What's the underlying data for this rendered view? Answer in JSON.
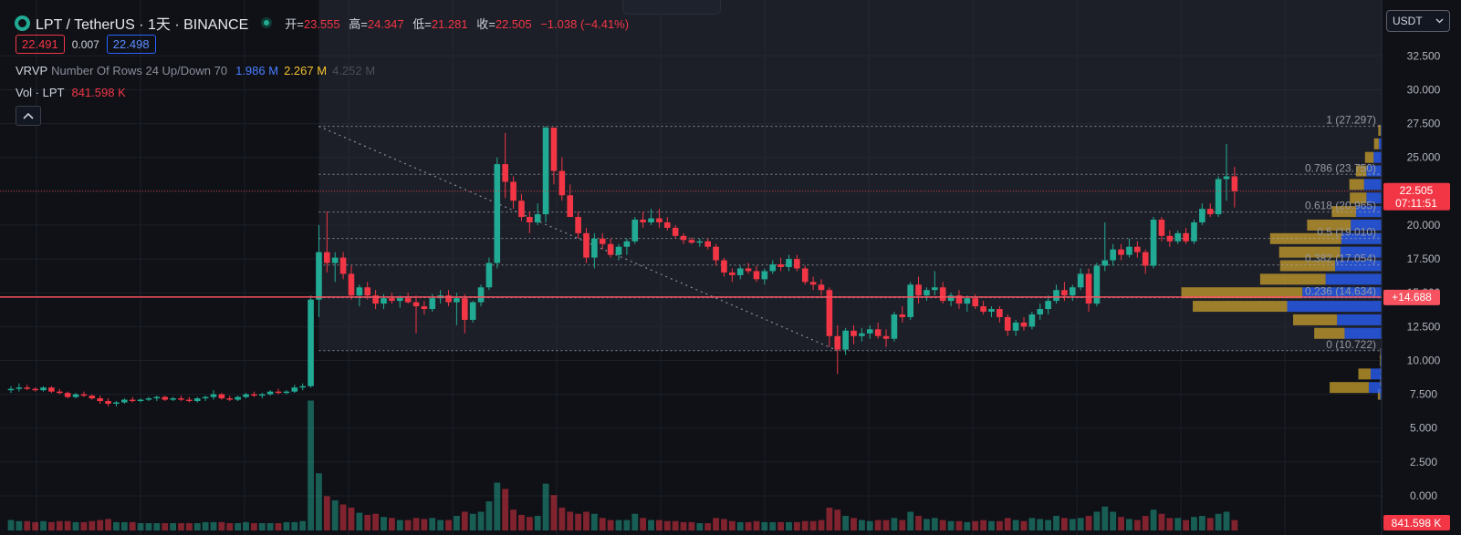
{
  "header": {
    "symbol": "LPT / TetherUS · 1天 · BINANCE",
    "ohlc": {
      "o_label": "开=",
      "o": "23.555",
      "h_label": "高=",
      "h": "24.347",
      "l_label": "低=",
      "l": "21.281",
      "c_label": "收=",
      "c": "22.505",
      "change": "−1.038 (−4.41%)"
    },
    "bid": "22.491",
    "spread": "0.007",
    "ask": "22.498"
  },
  "indicators": {
    "vrvp": {
      "name": "VRVP",
      "params": "Number Of Rows 24 Up/Down 70",
      "up": "1.986 M",
      "down": "2.267 M",
      "total": "4.252 M"
    },
    "vol": {
      "name": "Vol · LPT",
      "value": "841.598 K"
    }
  },
  "currency": "USDT",
  "colors": {
    "up": "#22ab94",
    "down": "#f23645",
    "vp_up": "#2962ff",
    "vp_down": "#d4a72c",
    "bg": "#0f1117"
  },
  "chart_data": {
    "type": "candlestick",
    "yaxis": {
      "ticks": [
        0,
        2.5,
        5,
        7.5,
        10,
        12.5,
        15,
        17.5,
        20,
        22.5,
        25,
        27.5,
        30,
        32.5
      ],
      "tick_labels": [
        "0.000",
        "2.500",
        "5.000",
        "7.500",
        "10.000",
        "12.500",
        "15.000",
        "17.500",
        "20.000",
        "22.500",
        "25.000",
        "27.500",
        "30.000",
        "32.500"
      ],
      "range": [
        -2.5,
        34.5
      ]
    },
    "last_price": {
      "value": 22.505,
      "label": "22.505",
      "countdown": "07:11:51"
    },
    "horizontal_line": {
      "value": 14.688,
      "label": "+14.688"
    },
    "volume_label": "841.598 K",
    "fib_levels": [
      {
        "ratio": "1",
        "value": 27.297,
        "label": "1 (27.297)"
      },
      {
        "ratio": "0.786",
        "value": 23.75,
        "label": "0.786 (23.750)"
      },
      {
        "ratio": "0.618",
        "value": 20.965,
        "label": "0.618 (20.965)"
      },
      {
        "ratio": "0.5",
        "value": 19.01,
        "label": "0.5 (19.010)"
      },
      {
        "ratio": "0.382",
        "value": 17.054,
        "label": "0.382 (17.054)"
      },
      {
        "ratio": "0.236",
        "value": 14.634,
        "label": "0.236 (14.634)"
      },
      {
        "ratio": "0",
        "value": 10.722,
        "label": "0 (10.722)"
      }
    ],
    "candles": [
      [
        7.8,
        8.1,
        7.6,
        7.9,
        1.0
      ],
      [
        7.9,
        8.3,
        7.7,
        8.0,
        0.9
      ],
      [
        8.0,
        8.2,
        7.8,
        7.9,
        0.9
      ],
      [
        7.9,
        8.0,
        7.7,
        7.8,
        0.8
      ],
      [
        7.8,
        8.1,
        7.7,
        8.0,
        0.9
      ],
      [
        8.0,
        8.1,
        7.6,
        7.7,
        0.8
      ],
      [
        7.7,
        7.9,
        7.5,
        7.6,
        0.9
      ],
      [
        7.6,
        7.7,
        7.2,
        7.3,
        0.9
      ],
      [
        7.3,
        7.6,
        7.2,
        7.5,
        0.8
      ],
      [
        7.5,
        7.7,
        7.3,
        7.4,
        0.8
      ],
      [
        7.4,
        7.5,
        7.1,
        7.2,
        0.9
      ],
      [
        7.2,
        7.4,
        6.8,
        7.0,
        1.0
      ],
      [
        7.0,
        7.2,
        6.6,
        6.8,
        1.1
      ],
      [
        6.8,
        7.0,
        6.6,
        6.9,
        0.8
      ],
      [
        6.9,
        7.2,
        6.8,
        7.1,
        0.8
      ],
      [
        7.1,
        7.3,
        6.9,
        7.0,
        0.8
      ],
      [
        7.0,
        7.2,
        6.9,
        7.1,
        0.7
      ],
      [
        7.1,
        7.3,
        7.0,
        7.2,
        0.7
      ],
      [
        7.2,
        7.4,
        7.0,
        7.3,
        0.7
      ],
      [
        7.3,
        7.4,
        7.0,
        7.1,
        0.7
      ],
      [
        7.1,
        7.3,
        7.0,
        7.2,
        0.7
      ],
      [
        7.2,
        7.4,
        7.0,
        7.1,
        0.7
      ],
      [
        7.1,
        7.3,
        6.9,
        7.0,
        0.7
      ],
      [
        7.0,
        7.3,
        6.9,
        7.2,
        0.7
      ],
      [
        7.2,
        7.4,
        7.0,
        7.3,
        0.8
      ],
      [
        7.3,
        7.8,
        7.1,
        7.5,
        0.8
      ],
      [
        7.5,
        7.6,
        7.1,
        7.2,
        0.8
      ],
      [
        7.2,
        7.4,
        7.0,
        7.1,
        0.7
      ],
      [
        7.1,
        7.4,
        7.0,
        7.3,
        0.7
      ],
      [
        7.3,
        7.6,
        7.2,
        7.5,
        0.8
      ],
      [
        7.5,
        7.7,
        7.3,
        7.4,
        0.7
      ],
      [
        7.4,
        7.6,
        7.2,
        7.5,
        0.7
      ],
      [
        7.5,
        7.8,
        7.4,
        7.7,
        0.7
      ],
      [
        7.7,
        7.9,
        7.5,
        7.6,
        0.7
      ],
      [
        7.6,
        7.8,
        7.5,
        7.7,
        0.8
      ],
      [
        7.7,
        8.2,
        7.6,
        8.0,
        0.8
      ],
      [
        8.0,
        8.3,
        7.8,
        8.1,
        0.9
      ],
      [
        8.1,
        14.8,
        8.0,
        14.5,
        12.5
      ],
      [
        14.5,
        20.0,
        13.2,
        18.0,
        5.5
      ],
      [
        18.0,
        21.0,
        16.5,
        17.2,
        3.3
      ],
      [
        17.2,
        18.0,
        15.8,
        17.6,
        2.9
      ],
      [
        17.6,
        18.0,
        16.0,
        16.4,
        2.5
      ],
      [
        16.4,
        17.0,
        14.5,
        14.8,
        2.2
      ],
      [
        14.8,
        15.6,
        14.0,
        15.4,
        1.7
      ],
      [
        15.4,
        15.8,
        14.5,
        14.8,
        1.5
      ],
      [
        14.8,
        15.2,
        13.8,
        14.2,
        1.6
      ],
      [
        14.2,
        14.9,
        13.8,
        14.6,
        1.3
      ],
      [
        14.6,
        15.0,
        14.2,
        14.4,
        1.2
      ],
      [
        14.4,
        14.8,
        13.9,
        14.6,
        1.0
      ],
      [
        14.6,
        15.0,
        14.2,
        14.3,
        1.0
      ],
      [
        14.3,
        14.8,
        12.0,
        14.0,
        1.2
      ],
      [
        14.0,
        14.4,
        13.4,
        13.8,
        1.1
      ],
      [
        13.8,
        14.9,
        13.6,
        14.6,
        1.2
      ],
      [
        14.6,
        15.2,
        14.2,
        14.8,
        1.0
      ],
      [
        14.8,
        15.2,
        14.0,
        14.3,
        1.0
      ],
      [
        14.3,
        15.0,
        12.6,
        14.6,
        1.4
      ],
      [
        14.6,
        14.9,
        12.0,
        13.0,
        1.8
      ],
      [
        13.0,
        14.4,
        12.8,
        14.3,
        1.6
      ],
      [
        14.3,
        15.6,
        14.0,
        15.4,
        1.8
      ],
      [
        15.4,
        17.6,
        15.2,
        17.2,
        2.8
      ],
      [
        17.2,
        25.0,
        16.8,
        24.5,
        4.6
      ],
      [
        24.5,
        26.8,
        22.0,
        23.2,
        4.0
      ],
      [
        23.2,
        23.6,
        21.2,
        21.8,
        2.0
      ],
      [
        21.8,
        22.3,
        20.3,
        20.6,
        1.5
      ],
      [
        20.6,
        21.0,
        19.4,
        20.2,
        1.3
      ],
      [
        20.2,
        21.6,
        20.0,
        20.8,
        1.4
      ],
      [
        20.8,
        27.3,
        20.2,
        27.2,
        4.5
      ],
      [
        27.2,
        27.2,
        23.0,
        24.0,
        3.4
      ],
      [
        24.0,
        25.0,
        21.8,
        22.2,
        2.2
      ],
      [
        22.2,
        23.0,
        20.6,
        20.6,
        1.8
      ],
      [
        20.6,
        21.0,
        19.0,
        19.4,
        1.6
      ],
      [
        19.4,
        19.8,
        17.2,
        17.6,
        1.8
      ],
      [
        17.6,
        19.4,
        16.8,
        19.0,
        1.6
      ],
      [
        19.0,
        19.4,
        18.2,
        18.6,
        1.2
      ],
      [
        18.6,
        19.0,
        17.6,
        17.8,
        1.0
      ],
      [
        17.8,
        18.6,
        17.4,
        18.4,
        1.0
      ],
      [
        18.4,
        19.0,
        17.8,
        18.8,
        1.0
      ],
      [
        18.8,
        20.6,
        18.6,
        20.4,
        1.6
      ],
      [
        20.4,
        21.0,
        19.8,
        20.2,
        1.2
      ],
      [
        20.2,
        21.2,
        20.0,
        20.5,
        1.0
      ],
      [
        20.5,
        21.2,
        19.8,
        20.2,
        1.0
      ],
      [
        20.2,
        20.6,
        19.6,
        19.8,
        0.9
      ],
      [
        19.8,
        20.0,
        19.0,
        19.2,
        0.9
      ],
      [
        19.2,
        19.4,
        18.6,
        18.9,
        0.8
      ],
      [
        18.9,
        19.1,
        18.6,
        18.7,
        0.8
      ],
      [
        18.7,
        19.0,
        18.4,
        18.8,
        0.7
      ],
      [
        18.8,
        19.0,
        18.2,
        18.4,
        0.7
      ],
      [
        18.4,
        18.6,
        17.0,
        17.4,
        1.2
      ],
      [
        17.4,
        17.6,
        16.2,
        16.5,
        1.1
      ],
      [
        16.5,
        16.8,
        15.8,
        16.3,
        0.9
      ],
      [
        16.3,
        17.0,
        16.0,
        16.8,
        0.8
      ],
      [
        16.8,
        17.2,
        16.4,
        16.6,
        0.8
      ],
      [
        16.6,
        17.0,
        15.8,
        16.0,
        0.9
      ],
      [
        16.0,
        16.8,
        15.6,
        16.6,
        0.8
      ],
      [
        16.6,
        17.4,
        16.4,
        17.1,
        0.8
      ],
      [
        17.1,
        17.6,
        16.6,
        16.9,
        0.8
      ],
      [
        16.9,
        17.8,
        16.6,
        17.5,
        0.8
      ],
      [
        17.5,
        17.8,
        16.6,
        16.8,
        0.8
      ],
      [
        16.8,
        17.0,
        15.6,
        15.8,
        0.9
      ],
      [
        15.8,
        16.2,
        15.2,
        15.6,
        0.9
      ],
      [
        15.6,
        16.0,
        14.8,
        15.2,
        1.0
      ],
      [
        15.2,
        15.4,
        11.0,
        11.8,
        2.2
      ],
      [
        11.8,
        12.6,
        9.0,
        10.8,
        2.0
      ],
      [
        10.8,
        12.4,
        10.4,
        12.2,
        1.4
      ],
      [
        12.2,
        12.6,
        11.2,
        11.8,
        1.2
      ],
      [
        11.8,
        12.4,
        11.4,
        12.0,
        1.0
      ],
      [
        12.0,
        12.6,
        11.6,
        12.3,
        0.9
      ],
      [
        12.3,
        12.8,
        11.6,
        11.8,
        1.0
      ],
      [
        11.8,
        12.3,
        11.0,
        11.6,
        1.0
      ],
      [
        11.6,
        13.6,
        11.4,
        13.4,
        1.2
      ],
      [
        13.4,
        14.0,
        12.8,
        13.2,
        1.0
      ],
      [
        13.2,
        15.8,
        13.0,
        15.6,
        1.8
      ],
      [
        15.6,
        16.2,
        14.2,
        14.8,
        1.4
      ],
      [
        14.8,
        15.4,
        14.4,
        15.2,
        1.1
      ],
      [
        15.2,
        16.6,
        14.8,
        15.4,
        1.2
      ],
      [
        15.4,
        15.8,
        14.2,
        14.4,
        1.0
      ],
      [
        14.4,
        15.0,
        14.0,
        14.8,
        0.9
      ],
      [
        14.8,
        15.2,
        13.8,
        14.2,
        0.9
      ],
      [
        14.2,
        14.8,
        13.6,
        14.6,
        0.8
      ],
      [
        14.6,
        14.9,
        13.8,
        14.0,
        0.9
      ],
      [
        14.0,
        14.4,
        13.4,
        13.6,
        1.0
      ],
      [
        13.6,
        14.0,
        13.2,
        13.8,
        0.9
      ],
      [
        13.8,
        14.0,
        12.8,
        13.2,
        0.9
      ],
      [
        13.2,
        13.4,
        11.8,
        12.2,
        1.2
      ],
      [
        12.2,
        13.0,
        11.8,
        12.8,
        1.0
      ],
      [
        12.8,
        13.2,
        12.2,
        12.5,
        0.9
      ],
      [
        12.5,
        13.6,
        12.3,
        13.4,
        1.2
      ],
      [
        13.4,
        14.2,
        13.0,
        13.8,
        1.1
      ],
      [
        13.8,
        14.8,
        13.4,
        14.4,
        1.0
      ],
      [
        14.4,
        15.6,
        14.2,
        15.2,
        1.4
      ],
      [
        15.2,
        15.8,
        14.4,
        14.8,
        1.2
      ],
      [
        14.8,
        15.6,
        14.4,
        15.4,
        1.1
      ],
      [
        15.4,
        16.8,
        15.2,
        16.4,
        1.2
      ],
      [
        16.4,
        16.8,
        13.6,
        14.2,
        1.4
      ],
      [
        14.2,
        17.2,
        14.0,
        17.0,
        1.8
      ],
      [
        17.0,
        20.2,
        16.6,
        17.4,
        2.3
      ],
      [
        17.4,
        18.6,
        17.0,
        18.2,
        1.8
      ],
      [
        18.2,
        18.6,
        17.4,
        17.8,
        1.3
      ],
      [
        17.8,
        19.0,
        17.6,
        18.4,
        1.1
      ],
      [
        18.4,
        18.8,
        17.6,
        18.0,
        1.0
      ],
      [
        18.0,
        18.2,
        16.4,
        17.0,
        1.4
      ],
      [
        17.0,
        20.6,
        16.8,
        20.4,
        2.0
      ],
      [
        20.4,
        20.6,
        18.8,
        19.2,
        1.6
      ],
      [
        19.2,
        19.6,
        18.4,
        18.8,
        1.2
      ],
      [
        18.8,
        19.6,
        18.6,
        19.4,
        1.2
      ],
      [
        19.4,
        19.8,
        18.6,
        18.8,
        1.0
      ],
      [
        18.8,
        20.4,
        18.6,
        20.2,
        1.3
      ],
      [
        20.2,
        21.6,
        20.0,
        21.2,
        1.4
      ],
      [
        21.2,
        21.6,
        20.6,
        20.8,
        1.2
      ],
      [
        20.8,
        23.6,
        20.6,
        23.4,
        1.6
      ],
      [
        23.4,
        26.0,
        21.8,
        23.6,
        1.8
      ],
      [
        23.6,
        24.3,
        21.3,
        22.5,
        1.0
      ]
    ],
    "volume_profile": [
      {
        "price": 7.5,
        "up": 6,
        "down": 10
      },
      {
        "price": 8.0,
        "up": 54,
        "down": 165
      },
      {
        "price": 8.5,
        "up": 5,
        "down": 2
      },
      {
        "price": 9.0,
        "up": 46,
        "down": 52
      },
      {
        "price": 9.5,
        "up": 4,
        "down": 1
      },
      {
        "price": 10.0,
        "up": 4,
        "down": 3
      },
      {
        "price": 10.5,
        "up": 4,
        "down": 2
      },
      {
        "price": 12.0,
        "up": 156,
        "down": 128
      },
      {
        "price": 13.0,
        "up": 188,
        "down": 185
      },
      {
        "price": 14.0,
        "up": 398,
        "down": 398
      },
      {
        "price": 15.0,
        "up": 334,
        "down": 510
      },
      {
        "price": 16.0,
        "up": 236,
        "down": 276
      },
      {
        "price": 17.0,
        "up": 196,
        "down": 232
      },
      {
        "price": 18.0,
        "up": 174,
        "down": 258
      },
      {
        "price": 19.0,
        "up": 170,
        "down": 300
      },
      {
        "price": 20.0,
        "up": 130,
        "down": 184
      },
      {
        "price": 21.0,
        "up": 108,
        "down": 102
      },
      {
        "price": 22.0,
        "up": 64,
        "down": 70
      },
      {
        "price": 23.0,
        "up": 74,
        "down": 62
      },
      {
        "price": 24.0,
        "up": 64,
        "down": 44
      },
      {
        "price": 25.0,
        "up": 34,
        "down": 36
      },
      {
        "price": 26.0,
        "up": 12,
        "down": 20
      },
      {
        "price": 27.0,
        "up": 4,
        "down": 10
      }
    ]
  }
}
